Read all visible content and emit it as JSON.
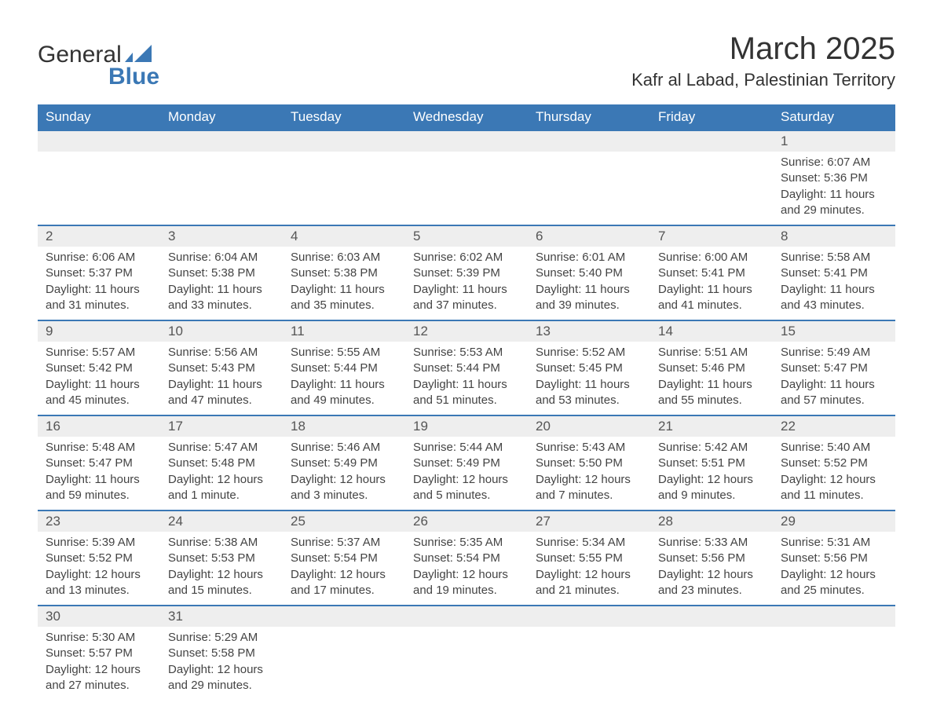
{
  "logo": {
    "text1": "General",
    "text2": "Blue"
  },
  "title": "March 2025",
  "subtitle": "Kafr al Labad, Palestinian Territory",
  "colors": {
    "header_bg": "#3b78b5",
    "header_text": "#ffffff",
    "row_header_bg": "#eeeeee",
    "row_divider": "#3b78b5",
    "body_text": "#444444",
    "title_text": "#333333"
  },
  "font": {
    "family": "Arial",
    "title_size": 40,
    "subtitle_size": 22,
    "header_size": 17,
    "body_size": 15
  },
  "weekdays": [
    "Sunday",
    "Monday",
    "Tuesday",
    "Wednesday",
    "Thursday",
    "Friday",
    "Saturday"
  ],
  "weeks": [
    [
      null,
      null,
      null,
      null,
      null,
      null,
      {
        "d": "1",
        "sunrise": "Sunrise: 6:07 AM",
        "sunset": "Sunset: 5:36 PM",
        "daylight": "Daylight: 11 hours and 29 minutes."
      }
    ],
    [
      {
        "d": "2",
        "sunrise": "Sunrise: 6:06 AM",
        "sunset": "Sunset: 5:37 PM",
        "daylight": "Daylight: 11 hours and 31 minutes."
      },
      {
        "d": "3",
        "sunrise": "Sunrise: 6:04 AM",
        "sunset": "Sunset: 5:38 PM",
        "daylight": "Daylight: 11 hours and 33 minutes."
      },
      {
        "d": "4",
        "sunrise": "Sunrise: 6:03 AM",
        "sunset": "Sunset: 5:38 PM",
        "daylight": "Daylight: 11 hours and 35 minutes."
      },
      {
        "d": "5",
        "sunrise": "Sunrise: 6:02 AM",
        "sunset": "Sunset: 5:39 PM",
        "daylight": "Daylight: 11 hours and 37 minutes."
      },
      {
        "d": "6",
        "sunrise": "Sunrise: 6:01 AM",
        "sunset": "Sunset: 5:40 PM",
        "daylight": "Daylight: 11 hours and 39 minutes."
      },
      {
        "d": "7",
        "sunrise": "Sunrise: 6:00 AM",
        "sunset": "Sunset: 5:41 PM",
        "daylight": "Daylight: 11 hours and 41 minutes."
      },
      {
        "d": "8",
        "sunrise": "Sunrise: 5:58 AM",
        "sunset": "Sunset: 5:41 PM",
        "daylight": "Daylight: 11 hours and 43 minutes."
      }
    ],
    [
      {
        "d": "9",
        "sunrise": "Sunrise: 5:57 AM",
        "sunset": "Sunset: 5:42 PM",
        "daylight": "Daylight: 11 hours and 45 minutes."
      },
      {
        "d": "10",
        "sunrise": "Sunrise: 5:56 AM",
        "sunset": "Sunset: 5:43 PM",
        "daylight": "Daylight: 11 hours and 47 minutes."
      },
      {
        "d": "11",
        "sunrise": "Sunrise: 5:55 AM",
        "sunset": "Sunset: 5:44 PM",
        "daylight": "Daylight: 11 hours and 49 minutes."
      },
      {
        "d": "12",
        "sunrise": "Sunrise: 5:53 AM",
        "sunset": "Sunset: 5:44 PM",
        "daylight": "Daylight: 11 hours and 51 minutes."
      },
      {
        "d": "13",
        "sunrise": "Sunrise: 5:52 AM",
        "sunset": "Sunset: 5:45 PM",
        "daylight": "Daylight: 11 hours and 53 minutes."
      },
      {
        "d": "14",
        "sunrise": "Sunrise: 5:51 AM",
        "sunset": "Sunset: 5:46 PM",
        "daylight": "Daylight: 11 hours and 55 minutes."
      },
      {
        "d": "15",
        "sunrise": "Sunrise: 5:49 AM",
        "sunset": "Sunset: 5:47 PM",
        "daylight": "Daylight: 11 hours and 57 minutes."
      }
    ],
    [
      {
        "d": "16",
        "sunrise": "Sunrise: 5:48 AM",
        "sunset": "Sunset: 5:47 PM",
        "daylight": "Daylight: 11 hours and 59 minutes."
      },
      {
        "d": "17",
        "sunrise": "Sunrise: 5:47 AM",
        "sunset": "Sunset: 5:48 PM",
        "daylight": "Daylight: 12 hours and 1 minute."
      },
      {
        "d": "18",
        "sunrise": "Sunrise: 5:46 AM",
        "sunset": "Sunset: 5:49 PM",
        "daylight": "Daylight: 12 hours and 3 minutes."
      },
      {
        "d": "19",
        "sunrise": "Sunrise: 5:44 AM",
        "sunset": "Sunset: 5:49 PM",
        "daylight": "Daylight: 12 hours and 5 minutes."
      },
      {
        "d": "20",
        "sunrise": "Sunrise: 5:43 AM",
        "sunset": "Sunset: 5:50 PM",
        "daylight": "Daylight: 12 hours and 7 minutes."
      },
      {
        "d": "21",
        "sunrise": "Sunrise: 5:42 AM",
        "sunset": "Sunset: 5:51 PM",
        "daylight": "Daylight: 12 hours and 9 minutes."
      },
      {
        "d": "22",
        "sunrise": "Sunrise: 5:40 AM",
        "sunset": "Sunset: 5:52 PM",
        "daylight": "Daylight: 12 hours and 11 minutes."
      }
    ],
    [
      {
        "d": "23",
        "sunrise": "Sunrise: 5:39 AM",
        "sunset": "Sunset: 5:52 PM",
        "daylight": "Daylight: 12 hours and 13 minutes."
      },
      {
        "d": "24",
        "sunrise": "Sunrise: 5:38 AM",
        "sunset": "Sunset: 5:53 PM",
        "daylight": "Daylight: 12 hours and 15 minutes."
      },
      {
        "d": "25",
        "sunrise": "Sunrise: 5:37 AM",
        "sunset": "Sunset: 5:54 PM",
        "daylight": "Daylight: 12 hours and 17 minutes."
      },
      {
        "d": "26",
        "sunrise": "Sunrise: 5:35 AM",
        "sunset": "Sunset: 5:54 PM",
        "daylight": "Daylight: 12 hours and 19 minutes."
      },
      {
        "d": "27",
        "sunrise": "Sunrise: 5:34 AM",
        "sunset": "Sunset: 5:55 PM",
        "daylight": "Daylight: 12 hours and 21 minutes."
      },
      {
        "d": "28",
        "sunrise": "Sunrise: 5:33 AM",
        "sunset": "Sunset: 5:56 PM",
        "daylight": "Daylight: 12 hours and 23 minutes."
      },
      {
        "d": "29",
        "sunrise": "Sunrise: 5:31 AM",
        "sunset": "Sunset: 5:56 PM",
        "daylight": "Daylight: 12 hours and 25 minutes."
      }
    ],
    [
      {
        "d": "30",
        "sunrise": "Sunrise: 5:30 AM",
        "sunset": "Sunset: 5:57 PM",
        "daylight": "Daylight: 12 hours and 27 minutes."
      },
      {
        "d": "31",
        "sunrise": "Sunrise: 5:29 AM",
        "sunset": "Sunset: 5:58 PM",
        "daylight": "Daylight: 12 hours and 29 minutes."
      },
      null,
      null,
      null,
      null,
      null
    ]
  ]
}
